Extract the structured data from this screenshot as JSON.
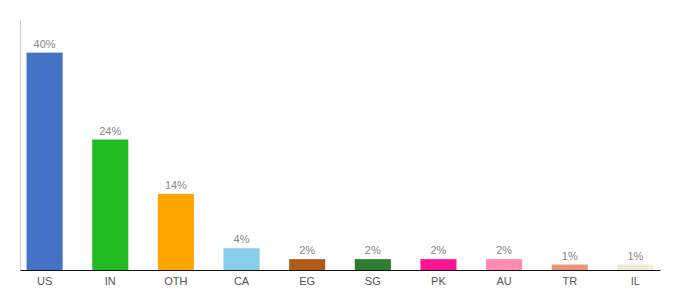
{
  "chart_data": {
    "type": "bar",
    "categories": [
      "US",
      "IN",
      "OTH",
      "CA",
      "EG",
      "SG",
      "PK",
      "AU",
      "TR",
      "IL"
    ],
    "values": [
      40,
      24,
      14,
      4,
      2,
      2,
      2,
      2,
      1,
      1
    ],
    "value_labels": [
      "40%",
      "24%",
      "14%",
      "4%",
      "2%",
      "2%",
      "2%",
      "2%",
      "1%",
      "1%"
    ],
    "colors": [
      "#4472c4",
      "#22bb22",
      "#ffa500",
      "#87ceeb",
      "#b05a1a",
      "#2e7d32",
      "#ff1493",
      "#ff8cb0",
      "#e8967a",
      "#f0ead8"
    ],
    "ylim": [
      0,
      46
    ],
    "data_labels": true,
    "tick_labels": "x",
    "grid": false
  }
}
